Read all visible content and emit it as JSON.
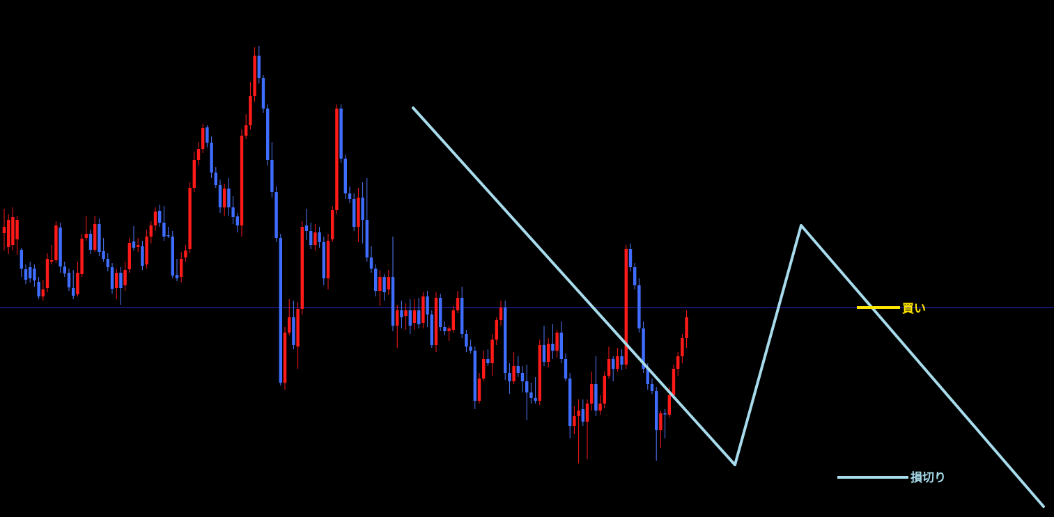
{
  "chart_data": {
    "type": "candlestick",
    "colors": {
      "background": "#000000",
      "bull": "#ff1a1a",
      "bear": "#3f6dff",
      "wick_bull": "#ff1a1a",
      "wick_bear": "#4f7bff",
      "price_line": "#2b2bd8",
      "trendline": "#a8dcec",
      "buy_marker": "#ffe600",
      "stop_marker": "#a8dcec"
    },
    "candles": [
      [
        335,
        326,
        300,
        360
      ],
      [
        355,
        316,
        308,
        365
      ],
      [
        352,
        312,
        298,
        360
      ],
      [
        344,
        316,
        310,
        366
      ],
      [
        359,
        386,
        356,
        398
      ],
      [
        387,
        402,
        380,
        408
      ],
      [
        384,
        400,
        376,
        406
      ],
      [
        386,
        403,
        380,
        412
      ],
      [
        405,
        426,
        398,
        430
      ],
      [
        426,
        416,
        402,
        432
      ],
      [
        414,
        372,
        364,
        420
      ],
      [
        376,
        374,
        352,
        380
      ],
      [
        374,
        324,
        318,
        378
      ],
      [
        327,
        383,
        320,
        392
      ],
      [
        383,
        393,
        376,
        398
      ],
      [
        392,
        413,
        386,
        418
      ],
      [
        414,
        425,
        388,
        430
      ],
      [
        423,
        392,
        376,
        426
      ],
      [
        394,
        343,
        336,
        398
      ],
      [
        342,
        336,
        310,
        346
      ],
      [
        336,
        359,
        330,
        365
      ],
      [
        359,
        322,
        310,
        362
      ],
      [
        322,
        362,
        314,
        368
      ],
      [
        361,
        372,
        342,
        376
      ],
      [
        372,
        384,
        364,
        390
      ],
      [
        384,
        415,
        378,
        422
      ],
      [
        414,
        392,
        386,
        430
      ],
      [
        392,
        414,
        384,
        438
      ],
      [
        410,
        388,
        376,
        418
      ],
      [
        387,
        349,
        342,
        392
      ],
      [
        347,
        356,
        325,
        360
      ],
      [
        355,
        352,
        342,
        362
      ],
      [
        354,
        382,
        346,
        388
      ],
      [
        380,
        340,
        330,
        386
      ],
      [
        340,
        324,
        318,
        350
      ],
      [
        324,
        304,
        298,
        332
      ],
      [
        303,
        320,
        294,
        326
      ],
      [
        320,
        340,
        296,
        346
      ],
      [
        338,
        339,
        326,
        342
      ],
      [
        340,
        396,
        332,
        400
      ],
      [
        395,
        400,
        372,
        404
      ],
      [
        398,
        372,
        362,
        406
      ],
      [
        370,
        360,
        352,
        376
      ],
      [
        358,
        270,
        262,
        364
      ],
      [
        270,
        230,
        218,
        276
      ],
      [
        230,
        214,
        204,
        238
      ],
      [
        214,
        184,
        178,
        220
      ],
      [
        183,
        205,
        180,
        212
      ],
      [
        205,
        248,
        196,
        256
      ],
      [
        248,
        266,
        240,
        270
      ],
      [
        266,
        298,
        258,
        306
      ],
      [
        298,
        271,
        264,
        310
      ],
      [
        271,
        298,
        256,
        310
      ],
      [
        298,
        312,
        282,
        322
      ],
      [
        311,
        324,
        306,
        334
      ],
      [
        324,
        195,
        186,
        340
      ],
      [
        195,
        180,
        164,
        200
      ],
      [
        180,
        138,
        118,
        186
      ],
      [
        138,
        80,
        68,
        146
      ],
      [
        80,
        112,
        66,
        120
      ],
      [
        112,
        156,
        108,
        162
      ],
      [
        156,
        230,
        150,
        238
      ],
      [
        230,
        276,
        204,
        284
      ],
      [
        276,
        342,
        268,
        348
      ],
      [
        342,
        550,
        336,
        554
      ],
      [
        550,
        478,
        470,
        560
      ],
      [
        478,
        456,
        430,
        482
      ],
      [
        456,
        496,
        432,
        502
      ],
      [
        498,
        444,
        434,
        530
      ],
      [
        444,
        326,
        318,
        452
      ],
      [
        324,
        332,
        300,
        345
      ],
      [
        332,
        352,
        320,
        358
      ],
      [
        352,
        334,
        322,
        360
      ],
      [
        334,
        348,
        326,
        356
      ],
      [
        348,
        400,
        340,
        410
      ],
      [
        400,
        346,
        336,
        416
      ],
      [
        344,
        302,
        296,
        348
      ],
      [
        302,
        156,
        150,
        308
      ],
      [
        156,
        228,
        150,
        234
      ],
      [
        228,
        278,
        222,
        286
      ],
      [
        278,
        286,
        268,
        292
      ],
      [
        286,
        326,
        278,
        332
      ],
      [
        326,
        284,
        270,
        348
      ],
      [
        284,
        316,
        262,
        350
      ],
      [
        316,
        370,
        256,
        376
      ],
      [
        370,
        386,
        354,
        392
      ],
      [
        386,
        418,
        380,
        426
      ],
      [
        418,
        398,
        388,
        440
      ],
      [
        398,
        420,
        394,
        432
      ],
      [
        416,
        398,
        388,
        424
      ],
      [
        398,
        468,
        340,
        476
      ],
      [
        468,
        446,
        438,
        500
      ],
      [
        446,
        456,
        432,
        472
      ],
      [
        454,
        446,
        436,
        474
      ],
      [
        446,
        468,
        430,
        480
      ],
      [
        464,
        446,
        430,
        474
      ],
      [
        446,
        466,
        428,
        472
      ],
      [
        464,
        426,
        420,
        472
      ],
      [
        426,
        452,
        418,
        470
      ],
      [
        452,
        496,
        446,
        500
      ],
      [
        496,
        428,
        420,
        506
      ],
      [
        428,
        470,
        422,
        476
      ],
      [
        470,
        476,
        462,
        482
      ],
      [
        476,
        472,
        468,
        490
      ],
      [
        474,
        446,
        440,
        478
      ],
      [
        446,
        428,
        418,
        450
      ],
      [
        428,
        480,
        412,
        486
      ],
      [
        480,
        498,
        474,
        506
      ],
      [
        498,
        504,
        488,
        508
      ],
      [
        504,
        576,
        498,
        588
      ],
      [
        576,
        544,
        536,
        580
      ],
      [
        544,
        516,
        504,
        548
      ],
      [
        516,
        522,
        502,
        526
      ],
      [
        522,
        488,
        480,
        540
      ],
      [
        488,
        460,
        456,
        496
      ],
      [
        460,
        442,
        432,
        468
      ],
      [
        442,
        536,
        432,
        546
      ],
      [
        536,
        548,
        522,
        566
      ],
      [
        548,
        526,
        506,
        552
      ],
      [
        526,
        536,
        512,
        542
      ],
      [
        536,
        548,
        526,
        564
      ],
      [
        548,
        564,
        524,
        604
      ],
      [
        564,
        572,
        550,
        580
      ],
      [
        572,
        576,
        542,
        580
      ],
      [
        576,
        496,
        488,
        582
      ],
      [
        496,
        520,
        468,
        526
      ],
      [
        520,
        494,
        486,
        528
      ],
      [
        494,
        504,
        466,
        516
      ],
      [
        504,
        478,
        474,
        514
      ],
      [
        478,
        516,
        462,
        522
      ],
      [
        516,
        544,
        508,
        548
      ],
      [
        544,
        612,
        536,
        630
      ],
      [
        612,
        598,
        584,
        624
      ],
      [
        598,
        590,
        574,
        666
      ],
      [
        588,
        606,
        574,
        612
      ],
      [
        606,
        580,
        574,
        660
      ],
      [
        580,
        552,
        534,
        590
      ],
      [
        552,
        590,
        512,
        598
      ],
      [
        590,
        580,
        568,
        596
      ],
      [
        580,
        540,
        534,
        586
      ],
      [
        540,
        516,
        498,
        544
      ],
      [
        516,
        530,
        512,
        548
      ],
      [
        530,
        512,
        500,
        534
      ],
      [
        512,
        524,
        502,
        532
      ],
      [
        524,
        358,
        352,
        530
      ],
      [
        358,
        384,
        350,
        390
      ],
      [
        384,
        410,
        378,
        416
      ],
      [
        410,
        472,
        400,
        478
      ],
      [
        472,
        530,
        462,
        536
      ],
      [
        530,
        552,
        522,
        560
      ],
      [
        552,
        562,
        544,
        566
      ],
      [
        562,
        618,
        556,
        662
      ],
      [
        618,
        594,
        590,
        644
      ],
      [
        594,
        594,
        588,
        630
      ],
      [
        596,
        568,
        556,
        600
      ],
      [
        568,
        530,
        524,
        574
      ],
      [
        530,
        512,
        506,
        540
      ],
      [
        512,
        486,
        480,
        522
      ],
      [
        486,
        456,
        446,
        500
      ]
    ],
    "y_domain": [
      0,
      743
    ],
    "price_line": 442,
    "trendlines": [
      [
        [
          593,
          155
        ],
        [
          1055,
          668
        ]
      ],
      [
        [
          1055,
          668
        ],
        [
          1150,
          324
        ]
      ],
      [
        [
          1150,
          324
        ],
        [
          1498,
          728
        ]
      ]
    ],
    "buy_marker": {
      "x1": 1230,
      "x2": 1292,
      "y": 442,
      "label": "買い"
    },
    "stop_marker": {
      "x1": 1202,
      "x2": 1304,
      "y": 686,
      "label": "損切り"
    },
    "x_start": 6,
    "spacing": 6.2,
    "body_width": 4.4
  }
}
